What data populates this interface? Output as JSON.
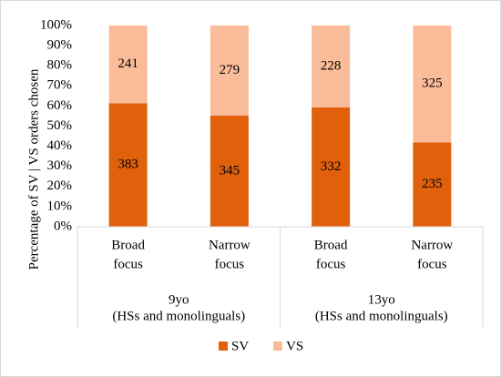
{
  "chart_data": {
    "type": "bar",
    "stacking": "percent",
    "y_label": "Percentage of SV | VS orders chosen",
    "groups": [
      {
        "label": [
          "9yo",
          "(HSs and monolinguals)"
        ],
        "categories": [
          [
            "Broad",
            "focus"
          ],
          [
            "Narrow",
            "focus"
          ]
        ]
      },
      {
        "label": [
          "13yo",
          "(HSs and monolinguals)"
        ],
        "categories": [
          [
            "Broad",
            "focus"
          ],
          [
            "Narrow",
            "focus"
          ]
        ]
      }
    ],
    "series": [
      {
        "name": "SV",
        "color": "#e0600c",
        "values": [
          383,
          345,
          332,
          235
        ]
      },
      {
        "name": "VS",
        "color": "#fbbc9a",
        "values": [
          241,
          279,
          228,
          325
        ]
      }
    ],
    "ylim": [
      0,
      100
    ],
    "yticks": [
      {
        "value": 0,
        "label": "0%"
      },
      {
        "value": 10,
        "label": "10%"
      },
      {
        "value": 20,
        "label": "20%"
      },
      {
        "value": 30,
        "label": "30%"
      },
      {
        "value": 40,
        "label": "40%"
      },
      {
        "value": 50,
        "label": "50%"
      },
      {
        "value": 60,
        "label": "60%"
      },
      {
        "value": 70,
        "label": "70%"
      },
      {
        "value": 80,
        "label": "80%"
      },
      {
        "value": 90,
        "label": "90%"
      },
      {
        "value": 100,
        "label": "100%"
      }
    ],
    "legend": "bottom"
  }
}
